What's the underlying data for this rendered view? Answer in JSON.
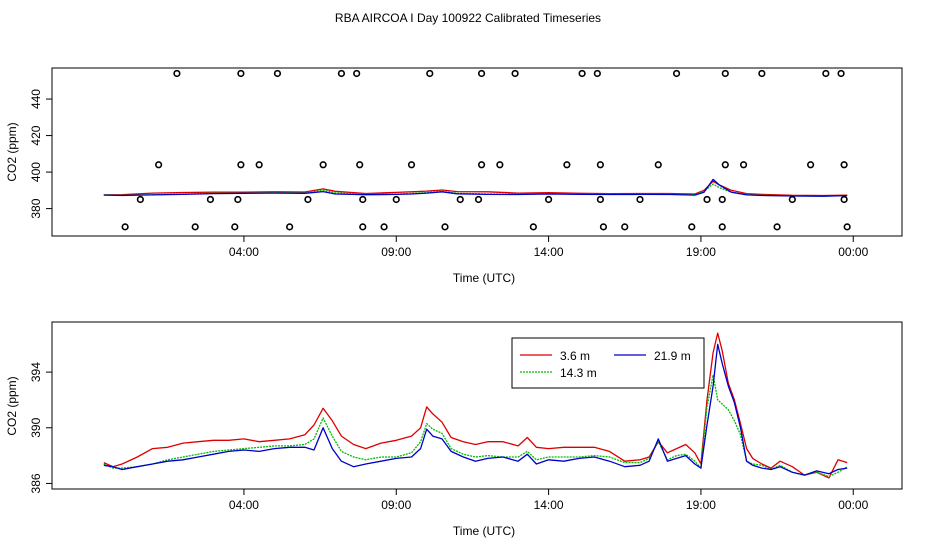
{
  "title": "RBA AIRCOA I  Day 100922  Calibrated Timeseries",
  "chart_data": [
    {
      "type": "scatter",
      "xlabel": "Time (UTC)",
      "ylabel": "CO2 (ppm)",
      "xlim": [
        -2.3,
        25.6
      ],
      "ylim": [
        365,
        457
      ],
      "xticks": [
        {
          "value": 4,
          "label": "04:00"
        },
        {
          "value": 9,
          "label": "09:00"
        },
        {
          "value": 14,
          "label": "14:00"
        },
        {
          "value": 19,
          "label": "19:00"
        },
        {
          "value": 24,
          "label": "00:00"
        }
      ],
      "yticks": [
        {
          "value": 380,
          "label": "380"
        },
        {
          "value": 400,
          "label": "400"
        },
        {
          "value": 420,
          "label": "420"
        },
        {
          "value": 440,
          "label": "440"
        }
      ],
      "calibration_points": [
        {
          "x": 0.1,
          "y": 370
        },
        {
          "x": 0.6,
          "y": 385
        },
        {
          "x": 1.2,
          "y": 404
        },
        {
          "x": 1.8,
          "y": 454
        },
        {
          "x": 2.4,
          "y": 370
        },
        {
          "x": 2.9,
          "y": 385
        },
        {
          "x": 3.7,
          "y": 370
        },
        {
          "x": 3.8,
          "y": 385
        },
        {
          "x": 3.9,
          "y": 404
        },
        {
          "x": 3.9,
          "y": 454
        },
        {
          "x": 4.5,
          "y": 404
        },
        {
          "x": 5.1,
          "y": 454
        },
        {
          "x": 5.5,
          "y": 370
        },
        {
          "x": 6.1,
          "y": 385
        },
        {
          "x": 6.6,
          "y": 404
        },
        {
          "x": 7.2,
          "y": 454
        },
        {
          "x": 7.7,
          "y": 454
        },
        {
          "x": 7.8,
          "y": 404
        },
        {
          "x": 7.9,
          "y": 385
        },
        {
          "x": 7.9,
          "y": 370
        },
        {
          "x": 8.6,
          "y": 370
        },
        {
          "x": 9.0,
          "y": 385
        },
        {
          "x": 9.5,
          "y": 404
        },
        {
          "x": 10.1,
          "y": 454
        },
        {
          "x": 10.6,
          "y": 370
        },
        {
          "x": 11.1,
          "y": 385
        },
        {
          "x": 11.7,
          "y": 385
        },
        {
          "x": 11.8,
          "y": 404
        },
        {
          "x": 11.8,
          "y": 454
        },
        {
          "x": 12.4,
          "y": 404
        },
        {
          "x": 12.9,
          "y": 454
        },
        {
          "x": 13.5,
          "y": 370
        },
        {
          "x": 14.0,
          "y": 385
        },
        {
          "x": 14.6,
          "y": 404
        },
        {
          "x": 15.1,
          "y": 454
        },
        {
          "x": 15.6,
          "y": 454
        },
        {
          "x": 15.7,
          "y": 404
        },
        {
          "x": 15.7,
          "y": 385
        },
        {
          "x": 15.8,
          "y": 370
        },
        {
          "x": 16.5,
          "y": 370
        },
        {
          "x": 17.0,
          "y": 385
        },
        {
          "x": 17.6,
          "y": 404
        },
        {
          "x": 18.2,
          "y": 454
        },
        {
          "x": 18.7,
          "y": 370
        },
        {
          "x": 19.2,
          "y": 385
        },
        {
          "x": 19.7,
          "y": 370
        },
        {
          "x": 19.7,
          "y": 385
        },
        {
          "x": 19.8,
          "y": 404
        },
        {
          "x": 19.8,
          "y": 454
        },
        {
          "x": 20.4,
          "y": 404
        },
        {
          "x": 21.0,
          "y": 454
        },
        {
          "x": 21.5,
          "y": 370
        },
        {
          "x": 22.0,
          "y": 385
        },
        {
          "x": 22.6,
          "y": 404
        },
        {
          "x": 23.1,
          "y": 454
        },
        {
          "x": 23.6,
          "y": 454
        },
        {
          "x": 23.7,
          "y": 404
        },
        {
          "x": 23.7,
          "y": 385
        },
        {
          "x": 23.8,
          "y": 370
        }
      ],
      "series": [
        {
          "name": "3.6 m",
          "color": "#dd0000",
          "x": [
            -0.6,
            0,
            1,
            2,
            3,
            4,
            5,
            6,
            6.6,
            7,
            8,
            9,
            9.5,
            10,
            10.5,
            11,
            12,
            13,
            14,
            15,
            16,
            17,
            18,
            18.8,
            19.1,
            19.4,
            19.6,
            20,
            20.5,
            21,
            22,
            23,
            23.8
          ],
          "y": [
            387.5,
            387.6,
            388.5,
            388.8,
            389.0,
            389.0,
            389.2,
            389.1,
            390.8,
            389.5,
            388.3,
            388.9,
            389.2,
            389.6,
            390.2,
            389.3,
            389.2,
            388.5,
            388.7,
            388.4,
            388.2,
            388.3,
            388.3,
            388.0,
            390.0,
            395.0,
            393.0,
            390.0,
            388.2,
            387.8,
            387.3,
            387.2,
            387.4
          ]
        },
        {
          "name": "14.3 m",
          "color": "#00bb00",
          "x": [
            -0.6,
            0,
            1,
            2,
            3,
            4,
            5,
            6,
            6.6,
            7,
            8,
            9,
            9.5,
            10,
            10.5,
            11,
            12,
            13,
            14,
            15,
            16,
            17,
            18,
            18.8,
            19.1,
            19.4,
            19.6,
            20,
            20.5,
            21,
            22,
            23,
            23.8
          ],
          "y": [
            387.5,
            387.3,
            387.6,
            388.0,
            388.4,
            388.5,
            388.7,
            388.6,
            390.0,
            388.6,
            387.9,
            388.0,
            388.3,
            388.8,
            389.5,
            388.4,
            388.0,
            387.9,
            388.2,
            388.0,
            387.9,
            388.0,
            387.9,
            387.6,
            389.5,
            393.5,
            391.5,
            389.0,
            387.6,
            387.3,
            387.0,
            386.8,
            387.2
          ]
        },
        {
          "name": "21.9 m",
          "color": "#0000cc",
          "x": [
            -0.6,
            0,
            1,
            2,
            3,
            4,
            5,
            6,
            6.6,
            7,
            8,
            9,
            9.5,
            10,
            10.5,
            11,
            12,
            13,
            14,
            15,
            16,
            17,
            18,
            18.8,
            19.1,
            19.4,
            19.6,
            20,
            20.5,
            21,
            22,
            23,
            23.8
          ],
          "y": [
            387.4,
            387.2,
            387.5,
            387.8,
            388.2,
            388.4,
            388.5,
            388.4,
            389.3,
            388.0,
            387.6,
            387.8,
            388.0,
            388.5,
            389.2,
            388.1,
            387.8,
            387.7,
            388.0,
            387.8,
            387.7,
            387.8,
            387.7,
            387.4,
            389.0,
            396.0,
            393.0,
            389.0,
            387.5,
            387.2,
            386.9,
            386.8,
            387.1
          ]
        }
      ]
    },
    {
      "type": "line",
      "xlabel": "Time (UTC)",
      "ylabel": "CO2 (ppm)",
      "xlim": [
        -2.3,
        25.6
      ],
      "ylim": [
        385.6,
        397.6
      ],
      "xticks": [
        {
          "value": 4,
          "label": "04:00"
        },
        {
          "value": 9,
          "label": "09:00"
        },
        {
          "value": 14,
          "label": "14:00"
        },
        {
          "value": 19,
          "label": "19:00"
        },
        {
          "value": 24,
          "label": "00:00"
        }
      ],
      "yticks": [
        {
          "value": 386,
          "label": "386"
        },
        {
          "value": 390,
          "label": "390"
        },
        {
          "value": 394,
          "label": "394"
        }
      ],
      "legend": {
        "position": "top-right",
        "entries": [
          "3.6 m",
          "21.9 m",
          "14.3 m"
        ]
      },
      "series": [
        {
          "name": "3.6 m",
          "color": "#dd0000",
          "x": [
            -0.6,
            -0.3,
            0,
            0.5,
            1,
            1.5,
            2,
            2.5,
            3,
            3.5,
            4,
            4.5,
            5,
            5.5,
            6,
            6.3,
            6.6,
            6.9,
            7.2,
            7.6,
            8,
            8.5,
            9,
            9.5,
            9.8,
            10,
            10.2,
            10.5,
            10.8,
            11.2,
            11.6,
            12,
            12.5,
            13,
            13.3,
            13.6,
            14,
            14.5,
            15,
            15.5,
            16,
            16.5,
            17,
            17.3,
            17.6,
            17.9,
            18.2,
            18.5,
            18.8,
            19.0,
            19.2,
            19.4,
            19.55,
            19.7,
            19.9,
            20.1,
            20.3,
            20.5,
            20.7,
            21,
            21.3,
            21.6,
            22,
            22.4,
            22.8,
            23.2,
            23.5,
            23.8
          ],
          "y": [
            387.5,
            387.2,
            387.4,
            387.9,
            388.5,
            388.6,
            388.9,
            389.0,
            389.1,
            389.1,
            389.2,
            389.0,
            389.1,
            389.2,
            389.5,
            390.2,
            391.4,
            390.5,
            389.4,
            388.8,
            388.5,
            388.9,
            389.1,
            389.4,
            390.0,
            391.5,
            391.0,
            390.4,
            389.3,
            389.0,
            388.8,
            389.0,
            389.0,
            388.7,
            389.3,
            388.6,
            388.5,
            388.6,
            388.6,
            388.6,
            388.3,
            387.6,
            387.7,
            387.9,
            389.0,
            388.2,
            388.5,
            388.8,
            388.2,
            387.4,
            392.0,
            395.4,
            396.8,
            395.5,
            393.2,
            392.0,
            390.3,
            388.5,
            387.8,
            387.4,
            387.1,
            387.6,
            387.2,
            386.6,
            386.8,
            386.4,
            387.7,
            387.5
          ]
        },
        {
          "name": "14.3 m",
          "color": "#00bb00",
          "x": [
            -0.6,
            -0.3,
            0,
            0.5,
            1,
            1.5,
            2,
            2.5,
            3,
            3.5,
            4,
            4.5,
            5,
            5.5,
            6,
            6.3,
            6.6,
            6.9,
            7.2,
            7.6,
            8,
            8.5,
            9,
            9.5,
            9.8,
            10,
            10.2,
            10.5,
            10.8,
            11.2,
            11.6,
            12,
            12.5,
            13,
            13.3,
            13.6,
            14,
            14.5,
            15,
            15.5,
            16,
            16.5,
            17,
            17.3,
            17.6,
            17.9,
            18.2,
            18.5,
            18.8,
            19.0,
            19.2,
            19.4,
            19.55,
            19.7,
            19.9,
            20.1,
            20.3,
            20.5,
            20.7,
            21,
            21.3,
            21.6,
            22,
            22.4,
            22.8,
            23.2,
            23.5,
            23.8
          ],
          "y": [
            387.4,
            387.1,
            387.1,
            387.2,
            387.4,
            387.7,
            387.9,
            388.1,
            388.3,
            388.4,
            388.5,
            388.6,
            388.7,
            388.7,
            388.8,
            389.2,
            390.7,
            389.4,
            388.3,
            387.9,
            387.7,
            387.9,
            387.9,
            388.2,
            389.0,
            390.3,
            389.9,
            389.6,
            388.5,
            388.1,
            387.9,
            388.0,
            387.9,
            387.9,
            388.3,
            387.7,
            387.9,
            387.9,
            387.9,
            388.0,
            387.9,
            387.5,
            387.5,
            387.8,
            389.0,
            387.7,
            388.0,
            388.1,
            387.6,
            387.1,
            391.5,
            393.8,
            392.0,
            391.7,
            391.3,
            390.5,
            389.5,
            387.6,
            387.4,
            387.3,
            387.0,
            387.3,
            386.8,
            386.6,
            386.8,
            386.5,
            386.8,
            387.2
          ]
        },
        {
          "name": "21.9 m",
          "color": "#0000cc",
          "x": [
            -0.6,
            -0.3,
            0,
            0.5,
            1,
            1.5,
            2,
            2.5,
            3,
            3.5,
            4,
            4.5,
            5,
            5.5,
            6,
            6.3,
            6.6,
            6.9,
            7.2,
            7.6,
            8,
            8.5,
            9,
            9.5,
            9.8,
            10,
            10.2,
            10.5,
            10.8,
            11.2,
            11.6,
            12,
            12.5,
            13,
            13.3,
            13.6,
            14,
            14.5,
            15,
            15.5,
            16,
            16.5,
            17,
            17.3,
            17.6,
            17.9,
            18.2,
            18.5,
            18.8,
            19.0,
            19.2,
            19.4,
            19.55,
            19.7,
            19.9,
            20.1,
            20.3,
            20.5,
            20.7,
            21,
            21.3,
            21.6,
            22,
            22.4,
            22.8,
            23.2,
            23.5,
            23.8
          ],
          "y": [
            387.3,
            387.2,
            387.0,
            387.2,
            387.4,
            387.6,
            387.7,
            387.9,
            388.1,
            388.3,
            388.4,
            388.3,
            388.5,
            388.6,
            388.6,
            388.4,
            390.0,
            388.5,
            387.6,
            387.2,
            387.4,
            387.6,
            387.8,
            387.9,
            388.5,
            389.9,
            389.4,
            389.2,
            388.3,
            387.9,
            387.6,
            387.8,
            387.9,
            387.6,
            388.1,
            387.4,
            387.7,
            387.6,
            387.8,
            387.9,
            387.6,
            387.2,
            387.3,
            387.6,
            389.2,
            387.6,
            387.8,
            388.0,
            387.4,
            387.1,
            390.2,
            393.0,
            396.0,
            394.6,
            393.0,
            391.8,
            390.0,
            387.6,
            387.3,
            387.1,
            387.0,
            387.2,
            386.8,
            386.6,
            386.9,
            386.7,
            387.0,
            387.1
          ]
        }
      ]
    }
  ]
}
